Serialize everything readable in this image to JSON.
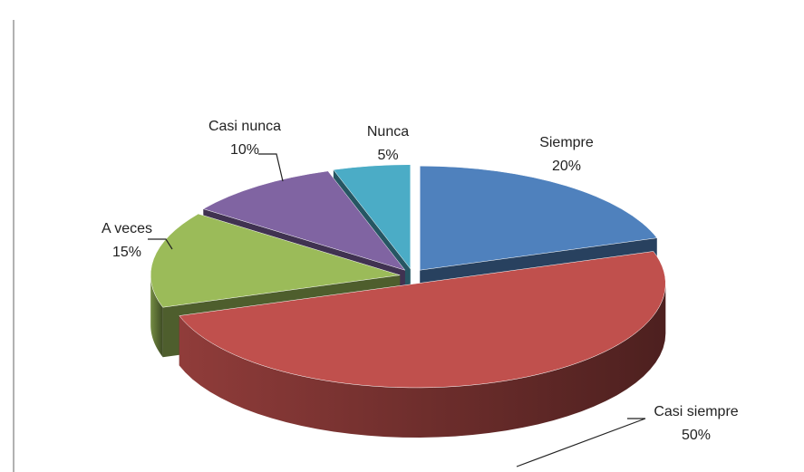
{
  "chart_data": {
    "type": "pie",
    "categories": [
      "Siempre",
      "Casi siempre",
      "A veces",
      "Casi nunca",
      "Nunca"
    ],
    "values": [
      20,
      50,
      15,
      10,
      5
    ],
    "value_labels": [
      "20%",
      "50%",
      "15%",
      "10%",
      "5%"
    ],
    "colors": [
      "#4f81bd",
      "#c0504d",
      "#9bbb59",
      "#8064a2",
      "#4bacc6"
    ]
  }
}
